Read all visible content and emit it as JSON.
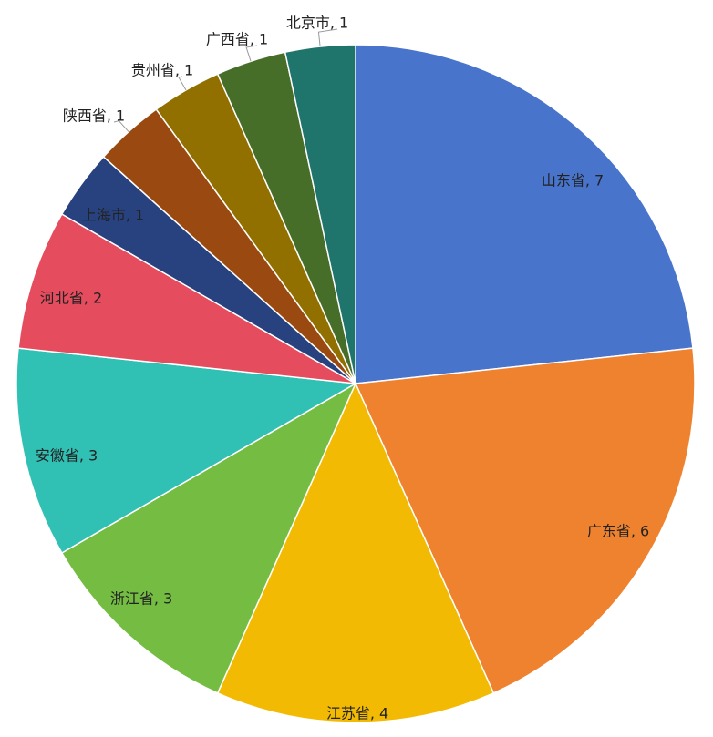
{
  "chart_data": {
    "type": "pie",
    "title": "",
    "slices": [
      {
        "label": "山东省, 7",
        "name": "山东省",
        "value": 7,
        "color": "#4874CB"
      },
      {
        "label": "广东省, 6",
        "name": "广东省",
        "value": 6,
        "color": "#EE822F"
      },
      {
        "label": "江苏省, 4",
        "name": "江苏省",
        "value": 4,
        "color": "#F2BA02"
      },
      {
        "label": "浙江省, 3",
        "name": "浙江省",
        "value": 3,
        "color": "#75BD42"
      },
      {
        "label": "安徽省, 3",
        "name": "安徽省",
        "value": 3,
        "color": "#30C0B4"
      },
      {
        "label": "河北省, 2",
        "name": "河北省",
        "value": 2,
        "color": "#E54C5E"
      },
      {
        "label": "上海市, 1",
        "name": "上海市",
        "value": 1,
        "color": "#27427F"
      },
      {
        "label": "陕西省, 1",
        "name": "陕西省",
        "value": 1,
        "color": "#9A4A10"
      },
      {
        "label": "贵州省, 1",
        "name": "贵州省",
        "value": 1,
        "color": "#917000"
      },
      {
        "label": "广西省, 1",
        "name": "广西省",
        "value": 1,
        "color": "#466E29"
      },
      {
        "label": "北京市, 1",
        "name": "北京市",
        "value": 1,
        "color": "#1F746C"
      }
    ]
  }
}
